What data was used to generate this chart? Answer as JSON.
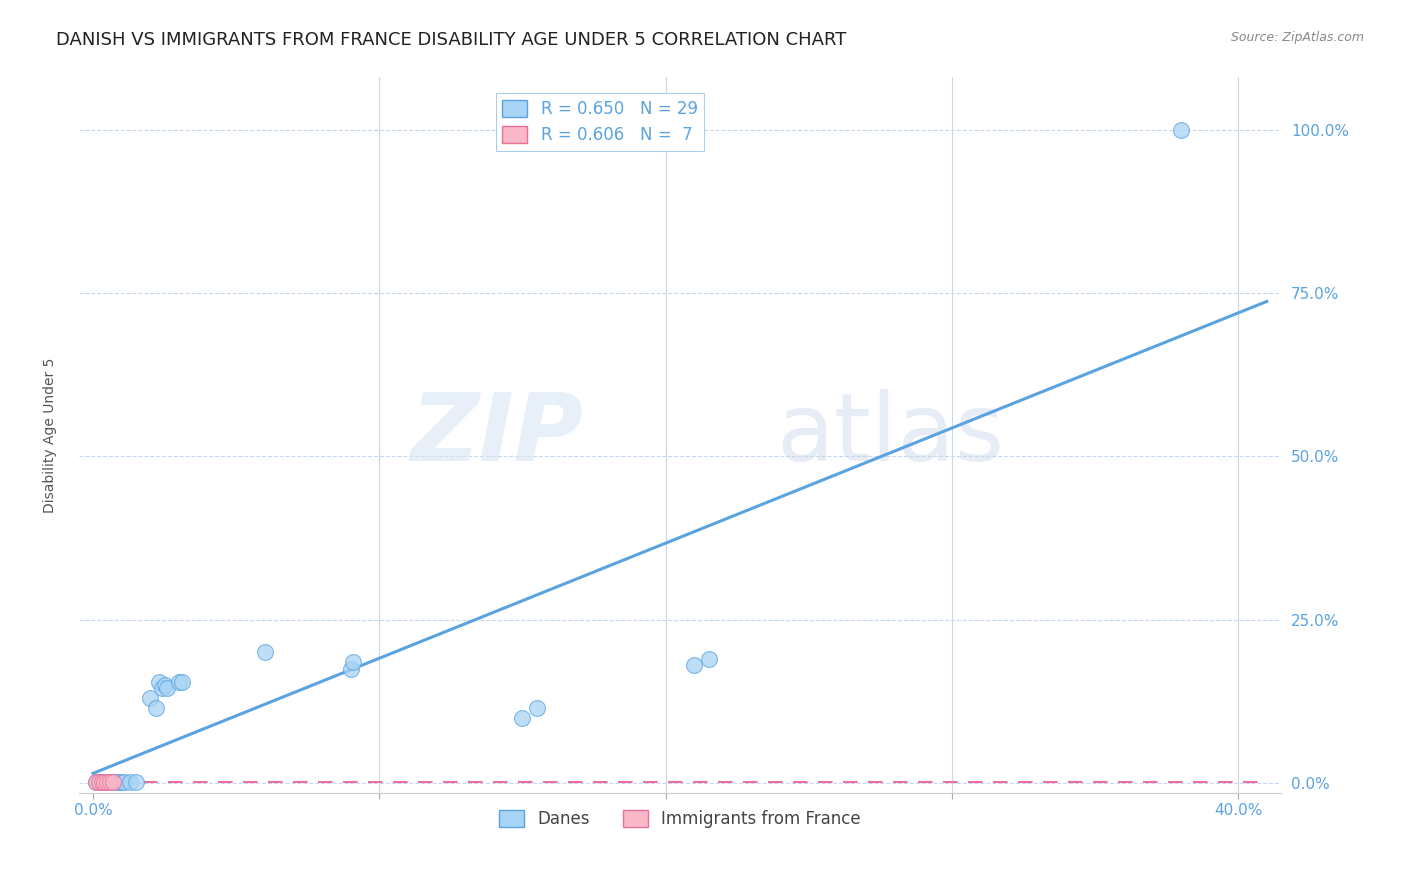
{
  "title": "DANISH VS IMMIGRANTS FROM FRANCE DISABILITY AGE UNDER 5 CORRELATION CHART",
  "source": "Source: ZipAtlas.com",
  "ylabel": "Disability Age Under 5",
  "legend_danes": "Danes",
  "legend_immigrants": "Immigrants from France",
  "r_danes": 0.65,
  "n_danes": 29,
  "r_immigrants": 0.606,
  "n_immigrants": 7,
  "danes_color": "#A8D4F5",
  "immigrants_color": "#F8B8C8",
  "regression_danes_color": "#5BA3E0",
  "regression_immigrants_color": "#E8709A",
  "danes_x": [
    0.001,
    0.002,
    0.003,
    0.004,
    0.005,
    0.006,
    0.007,
    0.008,
    0.009,
    0.01,
    0.011,
    0.013,
    0.015,
    0.02,
    0.022,
    0.023,
    0.024,
    0.025,
    0.026,
    0.03,
    0.031,
    0.06,
    0.09,
    0.091,
    0.15,
    0.155,
    0.21,
    0.215,
    0.38
  ],
  "danes_y": [
    0.002,
    0.002,
    0.002,
    0.002,
    0.002,
    0.002,
    0.002,
    0.002,
    0.002,
    0.002,
    0.002,
    0.002,
    0.002,
    0.13,
    0.115,
    0.155,
    0.145,
    0.15,
    0.145,
    0.155,
    0.155,
    0.2,
    0.175,
    0.185,
    0.1,
    0.115,
    0.18,
    0.19,
    1.0
  ],
  "immigrants_x": [
    0.001,
    0.002,
    0.003,
    0.004,
    0.005,
    0.006,
    0.007
  ],
  "immigrants_y": [
    0.002,
    0.002,
    0.002,
    0.002,
    0.002,
    0.002,
    0.002
  ],
  "xlim": [
    -0.005,
    0.415
  ],
  "ylim": [
    -0.015,
    1.08
  ],
  "xtick_positions": [
    0.0,
    0.1,
    0.2,
    0.3,
    0.4
  ],
  "ytick_positions": [
    0.0,
    0.25,
    0.5,
    0.75,
    1.0
  ],
  "ytick_labels": [
    "0.0%",
    "25.0%",
    "50.0%",
    "75.0%",
    "100.0%"
  ],
  "grid_color": "#C8D8EC",
  "background_color": "#FFFFFF",
  "watermark_zip": "ZIP",
  "watermark_atlas": "atlas",
  "title_fontsize": 13,
  "axis_label_fontsize": 10,
  "tick_fontsize": 11,
  "legend_fontsize": 12,
  "source_fontsize": 9,
  "tick_color": "#5BA3E0"
}
